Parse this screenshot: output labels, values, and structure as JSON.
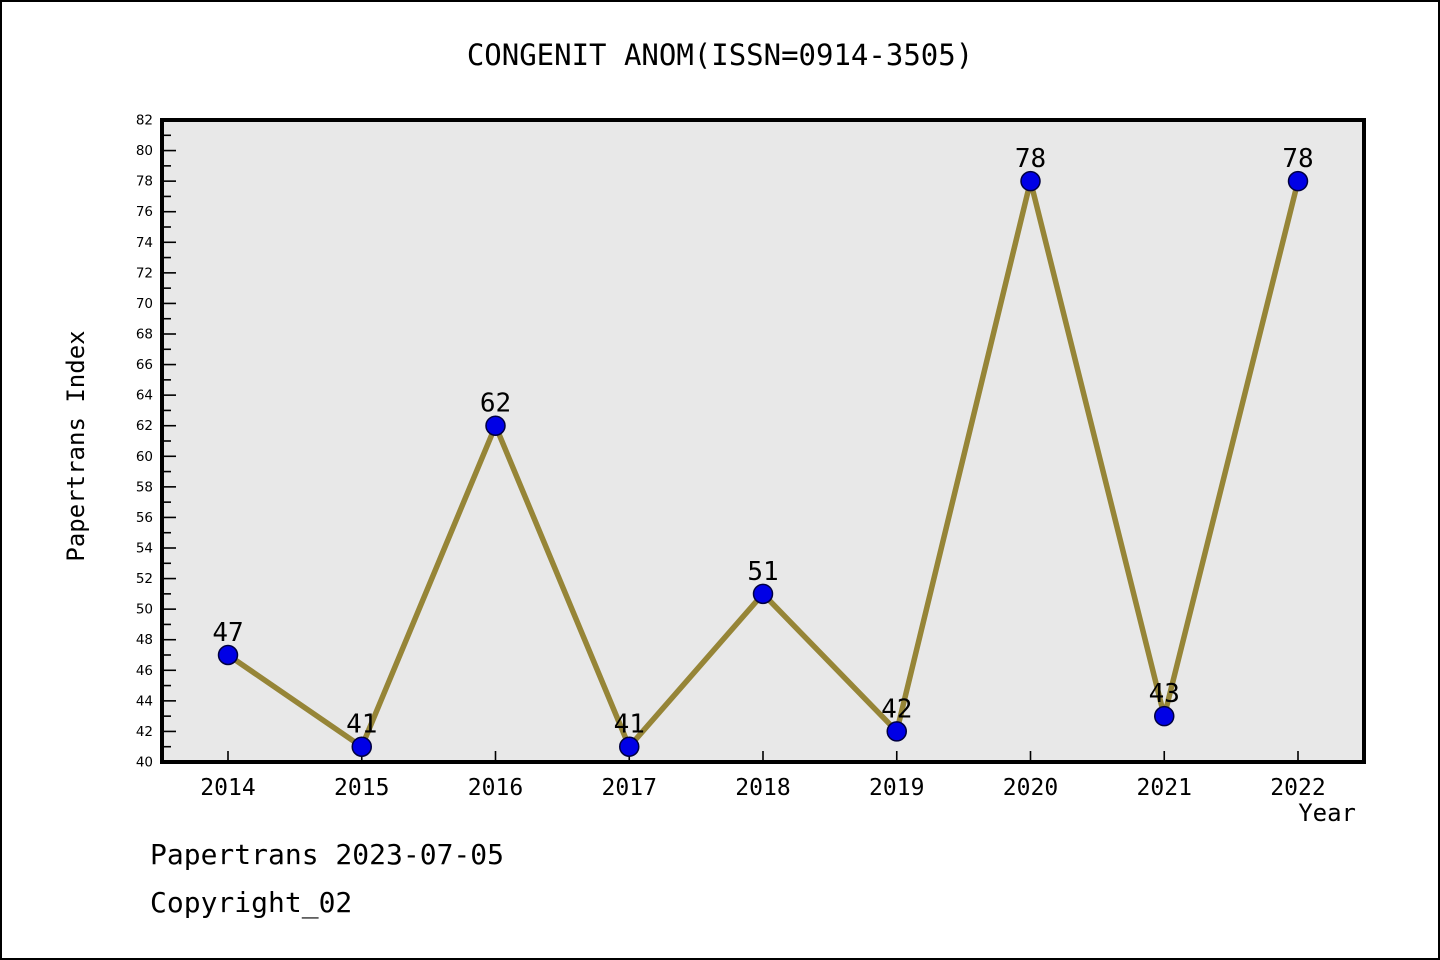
{
  "title": "CONGENIT ANOM(ISSN=0914-3505)",
  "footer": {
    "line1": "Papertrans 2023-07-05",
    "line2": "Copyright_02"
  },
  "chart_data": {
    "type": "line",
    "title": "CONGENIT ANOM(ISSN=0914-3505)",
    "x": [
      2014,
      2015,
      2016,
      2017,
      2018,
      2019,
      2020,
      2021,
      2022
    ],
    "values": [
      47,
      41,
      62,
      41,
      51,
      42,
      78,
      43,
      78
    ],
    "xlabel": "Year",
    "ylabel": "Papertrans Index",
    "ylim": [
      40,
      82
    ],
    "ytick_major": 2,
    "ytick_minor": 1,
    "grid": false,
    "legend": "none",
    "point_labels_shown": true,
    "colors": {
      "line": "#968537",
      "marker_fill": "#0000E6",
      "marker_edge": "#000040",
      "plot_background": "#E8E8E8",
      "axis": "#000000",
      "text": "#000000"
    }
  }
}
